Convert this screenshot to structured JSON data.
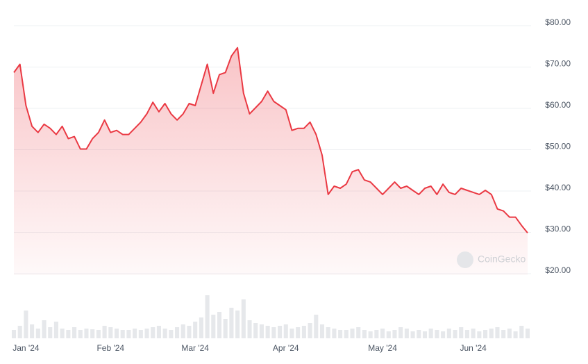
{
  "chart_data": {
    "type": "area",
    "watermark": "CoinGecko",
    "categories": [
      null,
      null,
      "Jan '24",
      null,
      null,
      null,
      null,
      null,
      null,
      null,
      null,
      null,
      null,
      null,
      null,
      null,
      "Feb '24",
      null,
      null,
      null,
      null,
      null,
      null,
      null,
      null,
      null,
      null,
      null,
      null,
      null,
      "Mar '24",
      null,
      null,
      null,
      null,
      null,
      null,
      null,
      null,
      null,
      null,
      null,
      null,
      null,
      null,
      "Apr '24",
      null,
      null,
      null,
      null,
      null,
      null,
      null,
      null,
      null,
      null,
      null,
      null,
      null,
      null,
      null,
      "May '24",
      null,
      null,
      null,
      null,
      null,
      null,
      null,
      null,
      null,
      null,
      null,
      null,
      null,
      null,
      "Jun '24",
      null,
      null,
      null,
      null,
      null,
      null,
      null,
      null,
      null
    ],
    "values": [
      68,
      70,
      60,
      55,
      53.5,
      55.5,
      54.5,
      53,
      55,
      52,
      52.5,
      49.5,
      49.5,
      52,
      53.5,
      56.5,
      53.5,
      54,
      53,
      53,
      54.5,
      56,
      58,
      60.8,
      58.5,
      60.5,
      58,
      56.5,
      58,
      60.5,
      60,
      65,
      70,
      63,
      67.5,
      68,
      72,
      74,
      63,
      58,
      59.5,
      61,
      63.5,
      61,
      60,
      59,
      54,
      54.5,
      54.5,
      56,
      53,
      48,
      38.5,
      40.5,
      40,
      41,
      44,
      44.5,
      42,
      41.5,
      40,
      38.5,
      40,
      41.5,
      40,
      40.5,
      39.5,
      38.5,
      40,
      40.5,
      38.5,
      41,
      39,
      38.5,
      40,
      39.5,
      39,
      38.5,
      39.5,
      38.5,
      35,
      34.5,
      33,
      33,
      31,
      29.2
    ],
    "volume": [
      12,
      18,
      40,
      20,
      14,
      26,
      16,
      24,
      14,
      12,
      16,
      12,
      14,
      13,
      12,
      18,
      16,
      14,
      12,
      12,
      14,
      12,
      14,
      16,
      18,
      14,
      12,
      16,
      20,
      18,
      24,
      30,
      62,
      34,
      38,
      28,
      44,
      40,
      56,
      26,
      22,
      20,
      18,
      16,
      18,
      20,
      14,
      16,
      18,
      22,
      34,
      20,
      16,
      14,
      12,
      12,
      14,
      16,
      12,
      10,
      12,
      14,
      10,
      12,
      16,
      14,
      10,
      12,
      10,
      14,
      12,
      10,
      14,
      12,
      16,
      12,
      14,
      10,
      12,
      14,
      16,
      12,
      14,
      10,
      18,
      14
    ],
    "color": "#ea3943",
    "volume_color": "#e6e8eb",
    "ylim": [
      20,
      80
    ],
    "yticks": [
      {
        "value": 20,
        "label": "$20.00"
      },
      {
        "value": 30,
        "label": "$30.00"
      },
      {
        "value": 40,
        "label": "$40.00"
      },
      {
        "value": 50,
        "label": "$50.00"
      },
      {
        "value": 60,
        "label": "$60.00"
      },
      {
        "value": 70,
        "label": "$70.00"
      },
      {
        "value": 80,
        "label": "$80.00"
      }
    ],
    "grid": true
  }
}
